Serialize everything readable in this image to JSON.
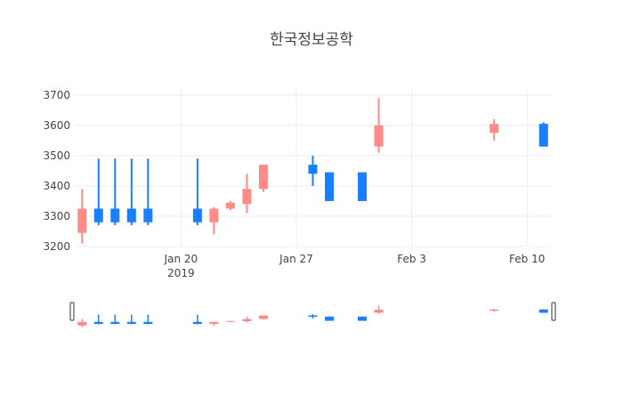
{
  "chart_data": {
    "type": "candlestick",
    "title": "한국정보공학",
    "xlabel": "",
    "ylabel": "",
    "ylim": [
      3200,
      3720
    ],
    "y_ticks": [
      3200,
      3300,
      3400,
      3500,
      3600,
      3700
    ],
    "x_ticks": [
      {
        "date": "2019-01-20",
        "label": "Jan 20",
        "sublabel": "2019"
      },
      {
        "date": "2019-01-27",
        "label": "Jan 27",
        "sublabel": ""
      },
      {
        "date": "2019-02-03",
        "label": "Feb 3",
        "sublabel": ""
      },
      {
        "date": "2019-02-10",
        "label": "Feb 10",
        "sublabel": ""
      }
    ],
    "xlim": [
      "2019-01-13T12:00",
      "2019-02-11T12:00"
    ],
    "grid": true,
    "legend": "none",
    "range_slider": true,
    "colors": {
      "increasing": "#ff8a8a",
      "decreasing": "#1a7fff",
      "grid": "#ececec",
      "tick_text": "#444444"
    },
    "candles": [
      {
        "date": "2019-01-14",
        "open": 3245,
        "high": 3390,
        "low": 3210,
        "close": 3325
      },
      {
        "date": "2019-01-15",
        "open": 3325,
        "high": 3490,
        "low": 3270,
        "close": 3280
      },
      {
        "date": "2019-01-16",
        "open": 3325,
        "high": 3490,
        "low": 3270,
        "close": 3280
      },
      {
        "date": "2019-01-17",
        "open": 3325,
        "high": 3490,
        "low": 3270,
        "close": 3280
      },
      {
        "date": "2019-01-18",
        "open": 3325,
        "high": 3490,
        "low": 3270,
        "close": 3280
      },
      {
        "date": "2019-01-21",
        "open": 3325,
        "high": 3490,
        "low": 3270,
        "close": 3280
      },
      {
        "date": "2019-01-22",
        "open": 3280,
        "high": 3330,
        "low": 3240,
        "close": 3325
      },
      {
        "date": "2019-01-23",
        "open": 3325,
        "high": 3350,
        "low": 3320,
        "close": 3345
      },
      {
        "date": "2019-01-24",
        "open": 3340,
        "high": 3440,
        "low": 3310,
        "close": 3390
      },
      {
        "date": "2019-01-25",
        "open": 3390,
        "high": 3470,
        "low": 3380,
        "close": 3470
      },
      {
        "date": "2019-01-28",
        "open": 3470,
        "high": 3500,
        "low": 3400,
        "close": 3440
      },
      {
        "date": "2019-01-29",
        "open": 3445,
        "high": 3445,
        "low": 3350,
        "close": 3350
      },
      {
        "date": "2019-01-31",
        "open": 3445,
        "high": 3445,
        "low": 3350,
        "close": 3350
      },
      {
        "date": "2019-02-01",
        "open": 3530,
        "high": 3690,
        "low": 3510,
        "close": 3600
      },
      {
        "date": "2019-02-08",
        "open": 3575,
        "high": 3620,
        "low": 3550,
        "close": 3605
      },
      {
        "date": "2019-02-11",
        "open": 3605,
        "high": 3610,
        "low": 3530,
        "close": 3530
      }
    ]
  }
}
